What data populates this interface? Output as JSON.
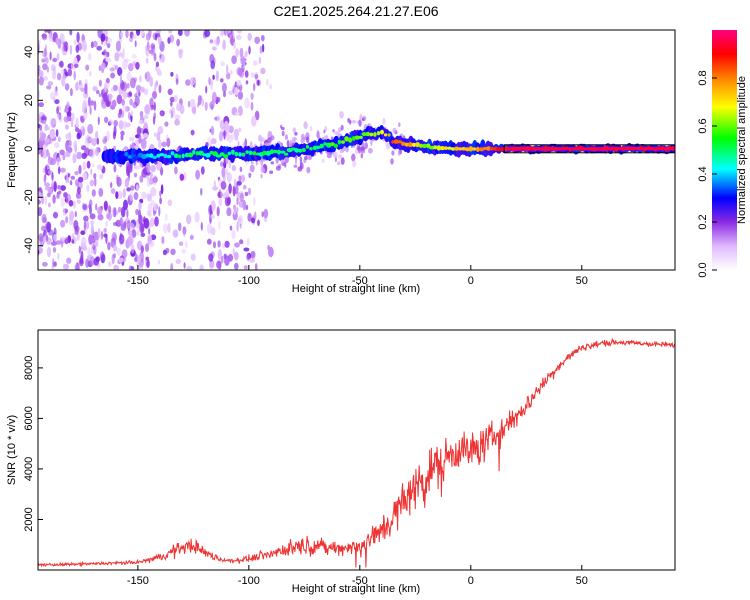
{
  "chart_data": [
    {
      "type": "heatmap",
      "title": "C2E1.2025.264.21.27.E06",
      "xlabel": "Height of straight line (km)",
      "ylabel": "Frequency (Hz)",
      "xlim": [
        -195,
        92
      ],
      "ylim": [
        -50,
        49
      ],
      "xticks": [
        -150,
        -100,
        -50,
        0,
        50
      ],
      "yticks": [
        -40,
        -20,
        0,
        20,
        40
      ],
      "colorbar": {
        "label": "Normalized spectral amplitude",
        "range": [
          0,
          1
        ],
        "ticks": [
          0.0,
          0.2,
          0.4,
          0.6,
          0.8
        ],
        "tick_labels": [
          "0.0",
          "0.2",
          "0.4",
          "0.6",
          "0.8"
        ],
        "colors": [
          "#ffffff",
          "#e0b8ff",
          "#8a2be2",
          "#0000ff",
          "#00ffff",
          "#00ff00",
          "#ffff00",
          "#ff8000",
          "#ff0000",
          "#ff0080"
        ]
      },
      "ridge": {
        "x": [
          -160,
          -140,
          -120,
          -100,
          -80,
          -60,
          -50,
          -40,
          -35,
          -30,
          -20,
          -10,
          0,
          10,
          20,
          50,
          90
        ],
        "freq": [
          -3,
          -3,
          -2,
          -2,
          -1,
          2,
          5,
          7,
          3,
          2,
          1,
          0,
          0,
          0,
          0,
          0,
          0
        ],
        "amplitude": [
          0.3,
          0.45,
          0.5,
          0.5,
          0.5,
          0.55,
          0.6,
          0.65,
          0.85,
          0.8,
          0.6,
          0.7,
          0.75,
          0.85,
          0.95,
          0.95,
          0.95
        ]
      },
      "noise_region_x": [
        -195,
        -100
      ]
    },
    {
      "type": "line",
      "title": "",
      "xlabel": "Height of straight line (km)",
      "ylabel": "SNR (10 * v/v)",
      "xlim": [
        -195,
        92
      ],
      "ylim": [
        0,
        9500
      ],
      "xticks": [
        -150,
        -100,
        -50,
        0,
        50
      ],
      "yticks": [
        2000,
        4000,
        6000,
        8000
      ],
      "series": [
        {
          "name": "SNR",
          "color": "#ee3333",
          "x": [
            -195,
            -180,
            -165,
            -150,
            -140,
            -135,
            -130,
            -125,
            -120,
            -115,
            -110,
            -100,
            -90,
            -80,
            -75,
            -70,
            -65,
            -60,
            -55,
            -50,
            -45,
            -40,
            -35,
            -30,
            -25,
            -20,
            -15,
            -10,
            -5,
            0,
            5,
            10,
            15,
            20,
            25,
            30,
            35,
            40,
            45,
            50,
            60,
            70,
            80,
            92
          ],
          "y": [
            200,
            220,
            260,
            300,
            500,
            700,
            900,
            1000,
            700,
            500,
            350,
            450,
            650,
            900,
            1000,
            950,
            900,
            850,
            900,
            950,
            1200,
            1600,
            2100,
            2700,
            3300,
            3800,
            4200,
            4600,
            4800,
            4700,
            4900,
            5300,
            5600,
            6000,
            6500,
            7100,
            7600,
            8100,
            8500,
            8800,
            9000,
            9000,
            8950,
            8900
          ],
          "noise_amplitude": [
            80,
            80,
            90,
            100,
            250,
            350,
            400,
            450,
            300,
            200,
            150,
            200,
            300,
            500,
            550,
            500,
            450,
            400,
            450,
            550,
            700,
            900,
            1100,
            1300,
            1350,
            1300,
            1250,
            1200,
            1150,
            1100,
            1050,
            900,
            800,
            650,
            550,
            450,
            350,
            300,
            250,
            200,
            180,
            160,
            160,
            160
          ]
        }
      ]
    }
  ]
}
